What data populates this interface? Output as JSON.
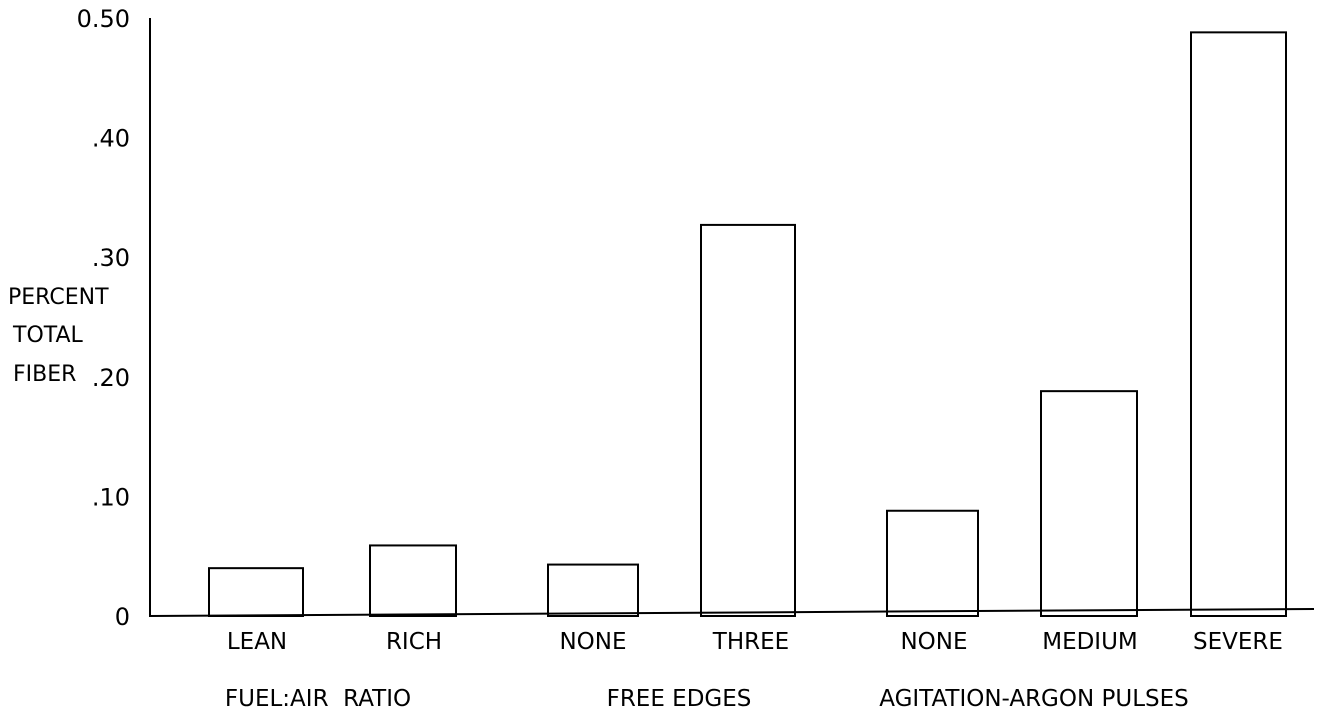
{
  "chart_data": {
    "type": "bar",
    "ylabel_lines": [
      "PERCENT",
      "TOTAL",
      "FIBER"
    ],
    "ylim": [
      0,
      0.5
    ],
    "yticks": [
      {
        "value": 0,
        "label": "0"
      },
      {
        "value": 0.1,
        "label": ".10"
      },
      {
        "value": 0.2,
        "label": ".20"
      },
      {
        "value": 0.3,
        "label": ".30"
      },
      {
        "value": 0.4,
        "label": ".40"
      },
      {
        "value": 0.5,
        "label": "0.50"
      }
    ],
    "categories": [
      "LEAN",
      "RICH",
      "NONE",
      "THREE",
      "NONE",
      "MEDIUM",
      "SEVERE"
    ],
    "values": [
      0.04,
      0.059,
      0.043,
      0.327,
      0.088,
      0.188,
      0.488
    ],
    "groups": [
      {
        "label": "FUEL:AIR  RATIO",
        "categories": [
          0,
          1
        ]
      },
      {
        "label": "FREE EDGES",
        "categories": [
          2,
          3
        ]
      },
      {
        "label": "AGITATION-ARGON PULSES",
        "categories": [
          4,
          5,
          6
        ]
      }
    ],
    "grid": false
  }
}
